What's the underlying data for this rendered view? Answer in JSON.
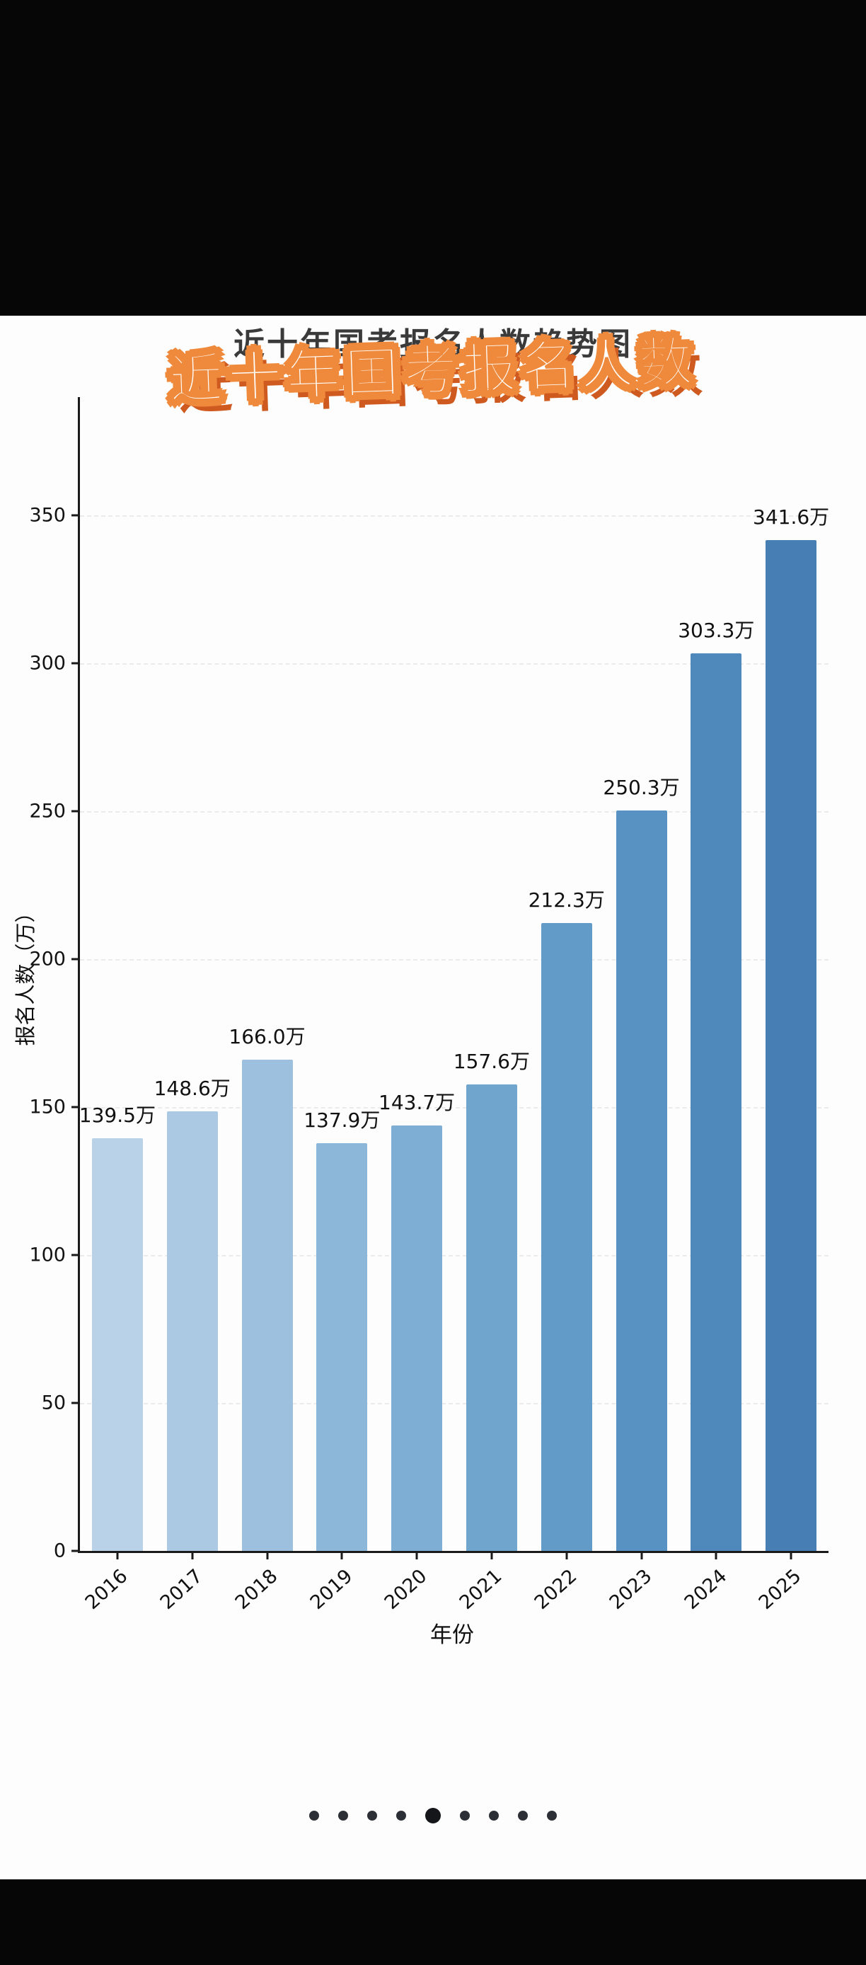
{
  "header": {
    "title": "近十年国考报名人数",
    "background_title": "近十年国考报名人数趋势图"
  },
  "chart_data": {
    "type": "bar",
    "title": "近十年国考报名人数",
    "categories": [
      "2016",
      "2017",
      "2018",
      "2019",
      "2020",
      "2021",
      "2022",
      "2023",
      "2024",
      "2025"
    ],
    "values": [
      139.5,
      148.6,
      166.0,
      137.9,
      143.7,
      157.6,
      212.3,
      250.3,
      303.3,
      341.6
    ],
    "bar_labels": [
      "139.5万",
      "148.6万",
      "166.0万",
      "137.9万",
      "143.7万",
      "157.6万",
      "212.3万",
      "250.3万",
      "303.3万",
      "341.6万"
    ],
    "xlabel": "年份",
    "ylabel": "报名人数（万）",
    "ylim": [
      0,
      390
    ],
    "yticks": [
      0,
      50,
      100,
      150,
      200,
      250,
      300,
      350
    ],
    "grid": "faint dashed horizontal lines",
    "legend": "none",
    "bar_colors": [
      "#bad2e8",
      "#abc9e3",
      "#9cc0de",
      "#8db7d9",
      "#7eaed4",
      "#70a5ce",
      "#639bc8",
      "#5892c2",
      "#4f88bb",
      "#477eb4"
    ]
  },
  "theme": {
    "accent_orange": "#ef8a3c",
    "accent_orange_dark": "#cf5a20",
    "axis_color": "#1a1a1a",
    "card_background": "#fdfdfd",
    "letterbox_background": "#060606"
  },
  "carousel": {
    "dot_count": 9,
    "active_index": 4
  }
}
